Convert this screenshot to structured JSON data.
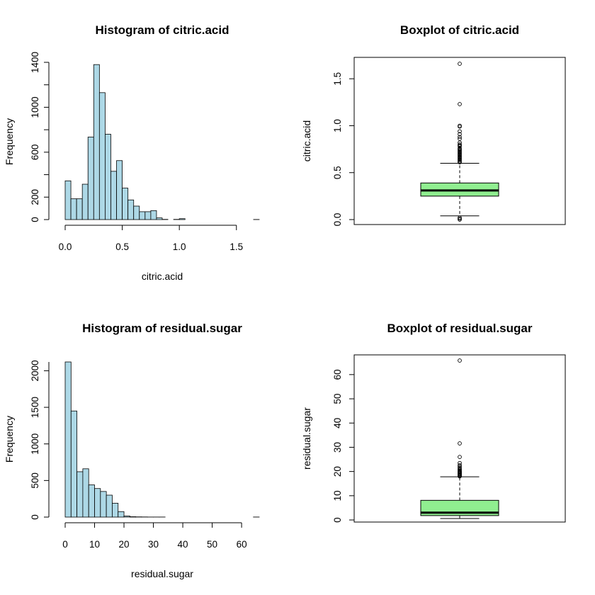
{
  "colors": {
    "hist_fill": "#ADD8E6",
    "box_fill": "#90EE90",
    "stroke": "#000000"
  },
  "chart_data": [
    {
      "type": "histogram",
      "title": "Histogram of citric.acid",
      "xlabel": "citric.acid",
      "ylabel": "Frequency",
      "bin_width": 0.05,
      "bin_start": 0.0,
      "counts": [
        345,
        185,
        185,
        315,
        735,
        1380,
        1130,
        760,
        430,
        525,
        280,
        175,
        120,
        70,
        70,
        80,
        15,
        2,
        0,
        2,
        8,
        0,
        0,
        0,
        0,
        0,
        0,
        0,
        0,
        0,
        0,
        0,
        0,
        1
      ],
      "xlim": [
        0,
        1.7
      ],
      "ylim": [
        0,
        1400
      ],
      "xticks": [
        "0.0",
        "0.5",
        "1.0",
        "1.5"
      ],
      "yticks": [
        "0",
        "200",
        "600",
        "1000",
        "1400"
      ]
    },
    {
      "type": "boxplot",
      "title": "Boxplot of citric.acid",
      "ylabel": "citric.acid",
      "ylim": [
        0,
        1.66
      ],
      "yticks": [
        "0.0",
        "0.5",
        "1.0",
        "1.5"
      ],
      "stats": {
        "lower_whisker": 0.04,
        "q1": 0.25,
        "median": 0.31,
        "q3": 0.39,
        "upper_whisker": 0.6
      },
      "outliers": [
        0.0,
        0.01,
        0.02,
        0.61,
        0.62,
        0.63,
        0.64,
        0.65,
        0.66,
        0.67,
        0.68,
        0.69,
        0.7,
        0.71,
        0.72,
        0.73,
        0.74,
        0.75,
        0.76,
        0.78,
        0.79,
        0.8,
        0.82,
        0.86,
        0.88,
        0.91,
        0.94,
        0.99,
        1.0,
        1.23,
        1.66
      ]
    },
    {
      "type": "histogram",
      "title": "Histogram of residual.sugar",
      "xlabel": "residual.sugar",
      "ylabel": "Frequency",
      "bin_width": 2,
      "bin_start": 0,
      "counts": [
        2120,
        1450,
        620,
        660,
        440,
        390,
        350,
        300,
        190,
        75,
        15,
        5,
        3,
        2,
        1,
        1,
        1,
        0,
        0,
        0,
        0,
        0,
        0,
        0,
        0,
        0,
        0,
        0,
        0,
        0,
        0,
        0,
        1
      ],
      "xlim": [
        0,
        66
      ],
      "ylim": [
        0,
        2120
      ],
      "xticks": [
        "0",
        "10",
        "20",
        "30",
        "40",
        "50",
        "60"
      ],
      "yticks": [
        "0",
        "500",
        "1000",
        "1500",
        "2000"
      ]
    },
    {
      "type": "boxplot",
      "title": "Boxplot of residual.sugar",
      "ylabel": "residual.sugar",
      "ylim": [
        0.6,
        65.8
      ],
      "yticks": [
        "0",
        "10",
        "20",
        "30",
        "40",
        "50",
        "60"
      ],
      "stats": {
        "lower_whisker": 0.6,
        "q1": 1.8,
        "median": 3.0,
        "q3": 8.1,
        "upper_whisker": 17.8
      },
      "outliers": [
        18.0,
        18.2,
        18.5,
        18.8,
        19.0,
        19.3,
        19.5,
        19.8,
        20.0,
        20.3,
        20.7,
        21.0,
        21.5,
        22.0,
        22.6,
        23.5,
        26.0,
        31.6,
        65.8
      ]
    }
  ]
}
